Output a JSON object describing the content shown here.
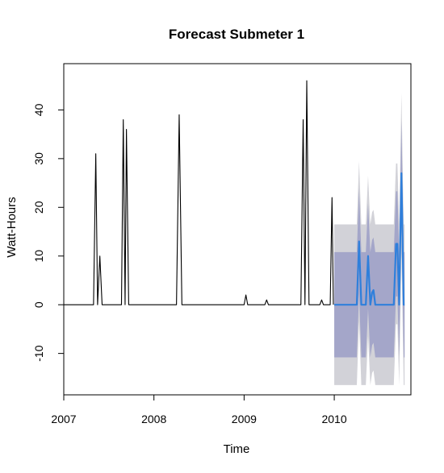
{
  "chart_data": {
    "type": "line",
    "title": "Forecast Submeter 1",
    "xlabel": "Time",
    "ylabel": "Watt-Hours",
    "xlim": [
      2007.0,
      2010.85
    ],
    "ylim": [
      -18.5,
      49.5
    ],
    "x_ticks": [
      2007,
      2008,
      2009,
      2010
    ],
    "x_tick_labels": [
      "2007",
      "2008",
      "2009",
      "2010"
    ],
    "y_ticks": [
      -10,
      0,
      10,
      20,
      30,
      40
    ],
    "y_tick_labels": [
      "-10",
      "0",
      "10",
      "20",
      "30",
      "40"
    ],
    "grid": false,
    "legend": "none",
    "colors": {
      "history": "#000000",
      "forecast": "#2f7fdb",
      "band80": "#a4a6c9",
      "band95": "#d2d2d8"
    },
    "series": [
      {
        "role": "history",
        "x": [
          2007.0,
          2007.33,
          2007.355,
          2007.375,
          2007.4,
          2007.425,
          2007.45,
          2007.64,
          2007.66,
          2007.68,
          2007.695,
          2007.72,
          2008.25,
          2008.28,
          2008.31,
          2009.0,
          2009.02,
          2009.04,
          2009.23,
          2009.25,
          2009.27,
          2009.63,
          2009.655,
          2009.675,
          2009.695,
          2009.72,
          2009.745,
          2009.84,
          2009.86,
          2009.88,
          2009.955,
          2009.975,
          2009.99
        ],
        "y": [
          0,
          0,
          31,
          0,
          10,
          0,
          0,
          0,
          38,
          0,
          36,
          0,
          0,
          39,
          0,
          0,
          2,
          0,
          0,
          1,
          0,
          0,
          38,
          0,
          46,
          0,
          0,
          0,
          1,
          0,
          0,
          22,
          0
        ]
      },
      {
        "role": "forecast",
        "x": [
          2010.0,
          2010.25,
          2010.275,
          2010.3,
          2010.35,
          2010.375,
          2010.4,
          2010.42,
          2010.435,
          2010.455,
          2010.66,
          2010.685,
          2010.7,
          2010.72,
          2010.745,
          2010.77,
          2010.78
        ],
        "y": [
          0,
          0,
          13,
          0,
          0,
          10,
          0,
          2.5,
          3,
          0,
          0,
          12.5,
          12.5,
          0,
          27,
          0,
          0
        ]
      }
    ],
    "intervals": [
      {
        "level": "95",
        "x": [
          2010.0,
          2010.25,
          2010.275,
          2010.3,
          2010.35,
          2010.375,
          2010.4,
          2010.42,
          2010.435,
          2010.455,
          2010.66,
          2010.685,
          2010.7,
          2010.72,
          2010.745,
          2010.77,
          2010.78
        ],
        "lower": [
          -16.5,
          -16.5,
          -3.5,
          -16.5,
          -16.5,
          -6.5,
          -16.5,
          -14,
          -13.5,
          -16.5,
          -16.5,
          -4,
          -4,
          -16.5,
          10.5,
          -16.5,
          -16.5
        ],
        "upper": [
          16.5,
          16.5,
          29.5,
          16.5,
          16.5,
          26.5,
          16.5,
          19,
          19.5,
          16.5,
          16.5,
          29,
          29,
          16.5,
          43.5,
          16.5,
          16.5
        ]
      },
      {
        "level": "80",
        "x": [
          2010.0,
          2010.25,
          2010.275,
          2010.3,
          2010.35,
          2010.375,
          2010.4,
          2010.42,
          2010.435,
          2010.455,
          2010.66,
          2010.685,
          2010.7,
          2010.72,
          2010.745,
          2010.77,
          2010.78
        ],
        "lower": [
          -10.8,
          -10.8,
          2.2,
          -10.8,
          -10.8,
          -0.8,
          -10.8,
          -8.3,
          -7.8,
          -10.8,
          -10.8,
          1.7,
          1.7,
          -10.8,
          16.2,
          -10.8,
          -10.8
        ],
        "upper": [
          10.8,
          10.8,
          23.8,
          10.8,
          10.8,
          20.8,
          10.8,
          13.3,
          13.8,
          10.8,
          10.8,
          23.3,
          23.3,
          10.8,
          37.8,
          10.8,
          10.8
        ]
      }
    ]
  }
}
